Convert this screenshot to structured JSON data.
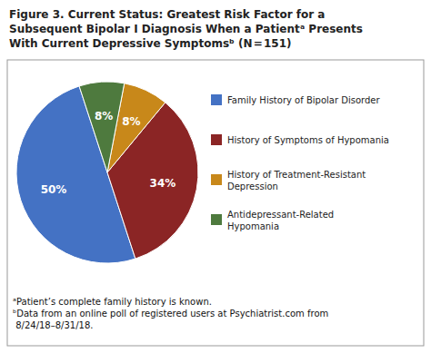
{
  "chart_data": {
    "type": "pie",
    "title": "Figure 3. Current Status: Greatest Risk Factor for a\nSubsequent Bipolar I Diagnosis When a Patientᵃ Presents\nWith Current Depressive Symptomsᵇ (N = 151)",
    "categories": [
      "Family History of Bipolar Disorder",
      "History of Symptoms of Hypomania",
      "History of Treatment-Resistant\nDepression",
      "Antidepressant-Related\nHypomania"
    ],
    "values": [
      50,
      34,
      8,
      8
    ],
    "value_labels": [
      "50%",
      "34%",
      "8%",
      "8%"
    ],
    "colors": [
      "#4472C4",
      "#8B2525",
      "#C8881A",
      "#4E7A3E"
    ],
    "data_labels": true,
    "legend": "right",
    "annotations": [
      "ᵃPatient’s complete family history is known.\nᵇData from an online poll of registered users at Psychiatrist.com from\n 8/24/18–8/31/18."
    ]
  }
}
